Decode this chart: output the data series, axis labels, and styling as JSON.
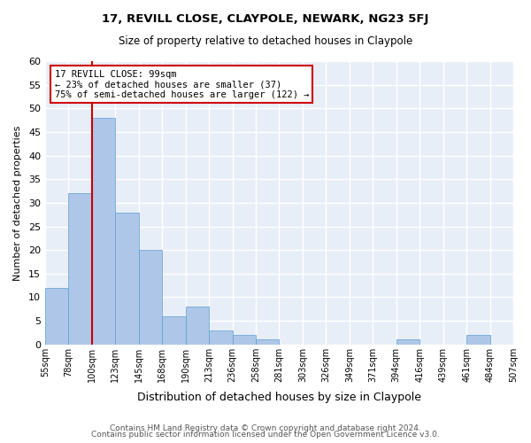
{
  "title": "17, REVILL CLOSE, CLAYPOLE, NEWARK, NG23 5FJ",
  "subtitle": "Size of property relative to detached houses in Claypole",
  "xlabel": "Distribution of detached houses by size in Claypole",
  "ylabel": "Number of detached properties",
  "bin_labels": [
    "55sqm",
    "78sqm",
    "100sqm",
    "123sqm",
    "145sqm",
    "168sqm",
    "190sqm",
    "213sqm",
    "236sqm",
    "258sqm",
    "281sqm",
    "303sqm",
    "326sqm",
    "349sqm",
    "371sqm",
    "394sqm",
    "416sqm",
    "439sqm",
    "461sqm",
    "484sqm",
    "507sqm"
  ],
  "bar_values": [
    12,
    32,
    48,
    28,
    20,
    6,
    8,
    3,
    2,
    1,
    0,
    0,
    0,
    0,
    0,
    1,
    0,
    0,
    2,
    0
  ],
  "bar_color": "#aec6e8",
  "bar_edge_color": "#5a9fd4",
  "vline_x_index": 2,
  "vline_color": "#cc0000",
  "annotation_box_text": "17 REVILL CLOSE: 99sqm\n← 23% of detached houses are smaller (37)\n75% of semi-detached houses are larger (122) →",
  "annotation_box_color": "#cc0000",
  "ylim": [
    0,
    60
  ],
  "yticks": [
    0,
    5,
    10,
    15,
    20,
    25,
    30,
    35,
    40,
    45,
    50,
    55,
    60
  ],
  "background_color": "#e8eef7",
  "grid_color": "#ffffff",
  "footer_line1": "Contains HM Land Registry data © Crown copyright and database right 2024.",
  "footer_line2": "Contains public sector information licensed under the Open Government Licence v3.0."
}
